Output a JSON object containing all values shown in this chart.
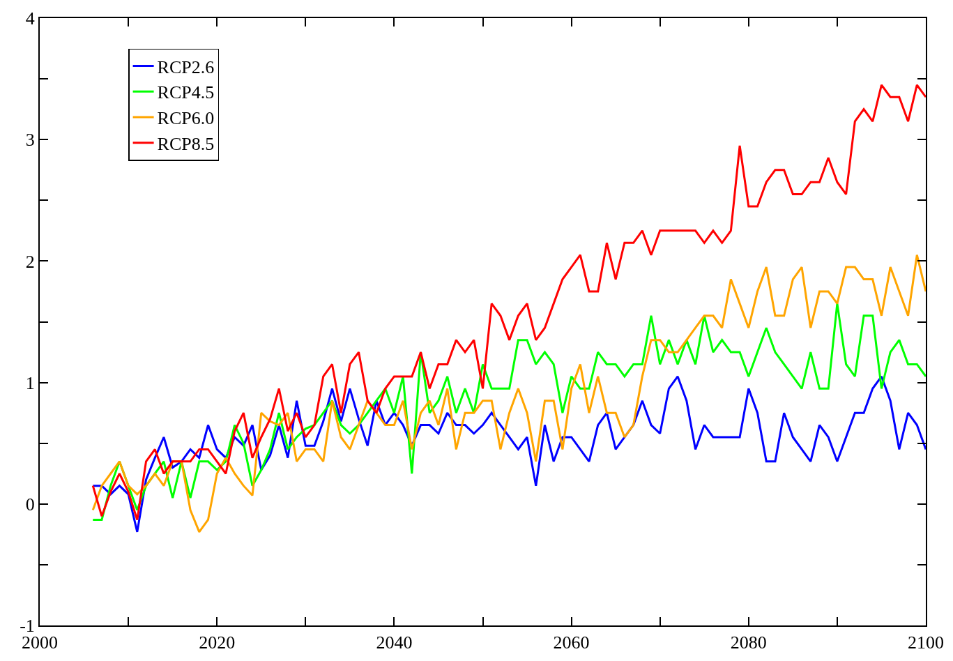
{
  "chart_data": {
    "type": "line",
    "x": [
      2006,
      2007,
      2008,
      2009,
      2010,
      2011,
      2012,
      2013,
      2014,
      2015,
      2016,
      2017,
      2018,
      2019,
      2020,
      2021,
      2022,
      2023,
      2024,
      2025,
      2026,
      2027,
      2028,
      2029,
      2030,
      2031,
      2032,
      2033,
      2034,
      2035,
      2036,
      2037,
      2038,
      2039,
      2040,
      2041,
      2042,
      2043,
      2044,
      2045,
      2046,
      2047,
      2048,
      2049,
      2050,
      2051,
      2052,
      2053,
      2054,
      2055,
      2056,
      2057,
      2058,
      2059,
      2060,
      2061,
      2062,
      2063,
      2064,
      2065,
      2066,
      2067,
      2068,
      2069,
      2070,
      2071,
      2072,
      2073,
      2074,
      2075,
      2076,
      2077,
      2078,
      2079,
      2080,
      2081,
      2082,
      2083,
      2084,
      2085,
      2086,
      2087,
      2088,
      2089,
      2090,
      2091,
      2092,
      2093,
      2094,
      2095,
      2096,
      2097,
      2098,
      2099,
      2100
    ],
    "series": [
      {
        "name": "RCP2.6",
        "color": "#0000ff",
        "values": [
          0.15,
          0.15,
          0.08,
          0.15,
          0.08,
          -0.23,
          0.2,
          0.38,
          0.55,
          0.3,
          0.35,
          0.45,
          0.38,
          0.65,
          0.45,
          0.38,
          0.55,
          0.48,
          0.65,
          0.28,
          0.4,
          0.65,
          0.38,
          0.85,
          0.48,
          0.48,
          0.68,
          0.95,
          0.68,
          0.95,
          0.7,
          0.48,
          0.85,
          0.65,
          0.75,
          0.65,
          0.48,
          0.65,
          0.65,
          0.58,
          0.75,
          0.65,
          0.65,
          0.58,
          0.65,
          0.75,
          0.65,
          0.55,
          0.45,
          0.55,
          0.15,
          0.65,
          0.35,
          0.55,
          0.55,
          0.45,
          0.35,
          0.65,
          0.75,
          0.45,
          0.55,
          0.65,
          0.85,
          0.65,
          0.58,
          0.95,
          1.05,
          0.85,
          0.45,
          0.65,
          0.55,
          0.55,
          0.55,
          0.55,
          0.95,
          0.75,
          0.35,
          0.35,
          0.75,
          0.55,
          0.45,
          0.35,
          0.65,
          0.55,
          0.35,
          0.55,
          0.75,
          0.75,
          0.95,
          1.05,
          0.85,
          0.45,
          0.75,
          0.65,
          0.45
        ]
      },
      {
        "name": "RCP4.5",
        "color": "#00ff00",
        "values": [
          -0.13,
          -0.13,
          0.15,
          0.35,
          0.15,
          -0.05,
          0.15,
          0.25,
          0.35,
          0.05,
          0.35,
          0.05,
          0.35,
          0.35,
          0.28,
          0.35,
          0.65,
          0.5,
          0.15,
          0.28,
          0.45,
          0.75,
          0.45,
          0.55,
          0.62,
          0.65,
          0.75,
          0.85,
          0.65,
          0.58,
          0.65,
          0.75,
          0.85,
          0.95,
          0.75,
          1.05,
          0.25,
          1.25,
          0.75,
          0.85,
          1.05,
          0.75,
          0.95,
          0.75,
          1.15,
          0.95,
          0.95,
          0.95,
          1.35,
          1.35,
          1.15,
          1.25,
          1.15,
          0.75,
          1.05,
          0.95,
          0.95,
          1.25,
          1.15,
          1.15,
          1.05,
          1.15,
          1.15,
          1.55,
          1.15,
          1.35,
          1.15,
          1.35,
          1.15,
          1.55,
          1.25,
          1.35,
          1.25,
          1.25,
          1.05,
          1.25,
          1.45,
          1.25,
          1.15,
          1.05,
          0.95,
          1.25,
          0.95,
          0.95,
          1.65,
          1.15,
          1.05,
          1.55,
          1.55,
          0.95,
          1.25,
          1.35,
          1.15,
          1.15,
          1.05
        ]
      },
      {
        "name": "RCP6.0",
        "color": "#ffa500",
        "values": [
          -0.05,
          0.15,
          0.25,
          0.35,
          0.15,
          0.08,
          0.15,
          0.25,
          0.15,
          0.35,
          0.35,
          -0.05,
          -0.23,
          -0.13,
          0.25,
          0.38,
          0.25,
          0.15,
          0.07,
          0.75,
          0.68,
          0.65,
          0.75,
          0.35,
          0.45,
          0.45,
          0.35,
          0.85,
          0.55,
          0.45,
          0.65,
          0.85,
          0.75,
          0.65,
          0.65,
          0.85,
          0.45,
          0.75,
          0.85,
          0.65,
          0.95,
          0.45,
          0.75,
          0.75,
          0.85,
          0.85,
          0.45,
          0.75,
          0.95,
          0.75,
          0.35,
          0.85,
          0.85,
          0.45,
          0.95,
          1.15,
          0.75,
          1.05,
          0.75,
          0.75,
          0.55,
          0.65,
          1.05,
          1.35,
          1.35,
          1.25,
          1.25,
          1.35,
          1.45,
          1.55,
          1.55,
          1.45,
          1.85,
          1.65,
          1.45,
          1.75,
          1.95,
          1.55,
          1.55,
          1.85,
          1.95,
          1.45,
          1.75,
          1.75,
          1.65,
          1.95,
          1.95,
          1.85,
          1.85,
          1.55,
          1.95,
          1.75,
          1.55,
          2.05,
          1.75
        ]
      },
      {
        "name": "RCP8.5",
        "color": "#ff0000",
        "values": [
          0.15,
          -0.1,
          0.1,
          0.25,
          0.1,
          -0.13,
          0.35,
          0.45,
          0.25,
          0.35,
          0.35,
          0.35,
          0.45,
          0.45,
          0.35,
          0.25,
          0.6,
          0.75,
          0.38,
          0.55,
          0.7,
          0.95,
          0.6,
          0.75,
          0.55,
          0.65,
          1.05,
          1.15,
          0.75,
          1.15,
          1.25,
          0.85,
          0.75,
          0.95,
          1.05,
          1.05,
          1.05,
          1.25,
          0.95,
          1.15,
          1.15,
          1.35,
          1.25,
          1.35,
          0.95,
          1.65,
          1.55,
          1.35,
          1.55,
          1.65,
          1.35,
          1.45,
          1.65,
          1.85,
          1.95,
          2.05,
          1.75,
          1.75,
          2.15,
          1.85,
          2.15,
          2.15,
          2.25,
          2.05,
          2.25,
          2.25,
          2.25,
          2.25,
          2.25,
          2.15,
          2.25,
          2.15,
          2.25,
          2.95,
          2.45,
          2.45,
          2.65,
          2.75,
          2.75,
          2.55,
          2.55,
          2.65,
          2.65,
          2.85,
          2.65,
          2.55,
          3.15,
          3.25,
          3.15,
          3.45,
          3.35,
          3.35,
          3.15,
          3.45,
          3.35
        ]
      }
    ],
    "xlim": [
      2000,
      2100
    ],
    "xticks": [
      2000,
      {
        "value": 2010,
        "label": null
      },
      2020,
      {
        "value": 2030,
        "label": null
      },
      2040,
      {
        "value": 2050,
        "label": null
      },
      2060,
      {
        "value": 2070,
        "label": null
      },
      2080,
      {
        "value": 2090,
        "label": null
      },
      2100
    ],
    "ylim": [
      -1,
      4
    ],
    "yticks": [
      -1,
      {
        "value": -0.5,
        "label": null
      },
      0,
      {
        "value": 0.5,
        "label": null
      },
      1,
      {
        "value": 1.5,
        "label": null
      },
      2,
      {
        "value": 2.5,
        "label": null
      },
      3,
      {
        "value": 3.5,
        "label": null
      },
      4
    ],
    "legend": "top left",
    "marker": "none",
    "line_style": "solid"
  }
}
